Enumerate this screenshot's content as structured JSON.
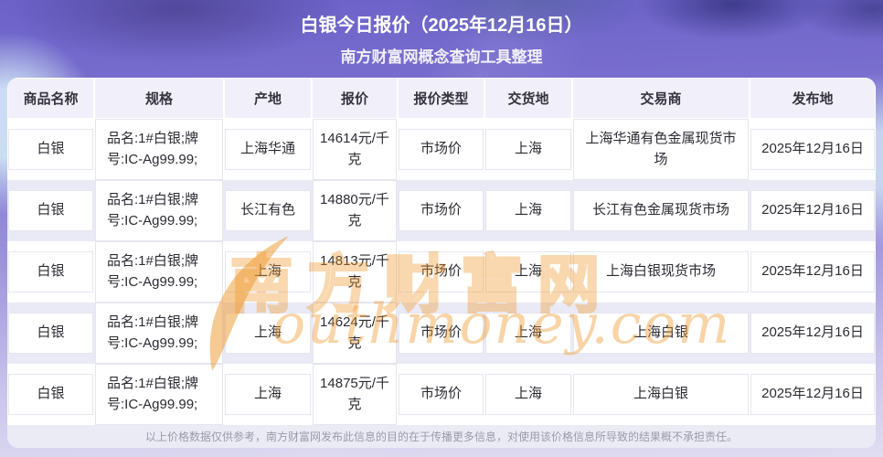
{
  "banner": {
    "title": "白银今日报价（2025年12月16日）",
    "subtitle": "南方财富网概念查询工具整理"
  },
  "table": {
    "headers": [
      "商品名称",
      "规格",
      "产地",
      "报价",
      "报价类型",
      "交货地",
      "交易商",
      "发布地"
    ],
    "rows": [
      [
        "白银",
        "品名:1#白银;牌号:IC-Ag99.99;",
        "上海华通",
        "14614元/千克",
        "市场价",
        "上海",
        "上海华通有色金属现货市场",
        "2025年12月16日"
      ],
      [
        "白银",
        "品名:1#白银;牌号:IC-Ag99.99;",
        "长江有色",
        "14880元/千克",
        "市场价",
        "上海",
        "长江有色金属现货市场",
        "2025年12月16日"
      ],
      [
        "白银",
        "品名:1#白银;牌号:IC-Ag99.99;",
        "上海",
        "14813元/千克",
        "市场价",
        "上海",
        "上海白银现货市场",
        "2025年12月16日"
      ],
      [
        "白银",
        "品名:1#白银;牌号:IC-Ag99.99;",
        "上海",
        "14624元/千克",
        "市场价",
        "上海",
        "上海白银",
        "2025年12月16日"
      ],
      [
        "白银",
        "品名:1#白银;牌号:IC-Ag99.99;",
        "上海",
        "14875元/千克",
        "市场价",
        "上海",
        "上海白银",
        "2025年12月16日"
      ]
    ]
  },
  "footer": {
    "disclaimer": "以上价格数据仅供参考，南方财富网发布此信息的目的在于传播更多信息，对使用该价格信息所导致的结果概不承担责任。"
  },
  "watermark": {
    "cn": "南方财富网",
    "en": "outhmoney.com"
  },
  "colors": {
    "accent_orange": "#e8962e",
    "banner_purple": "#7a6ed0",
    "row_stripe": "#eaeaf6",
    "header_bg": "#f1eff9"
  }
}
